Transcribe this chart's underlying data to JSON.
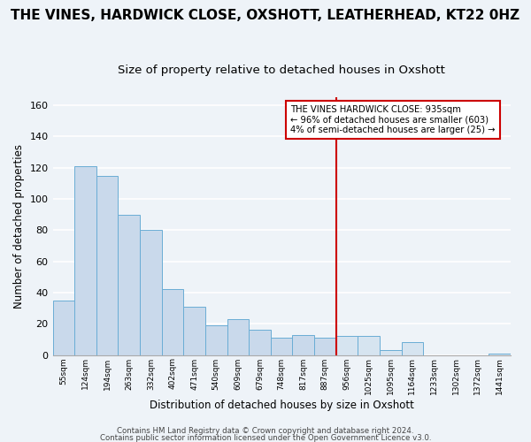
{
  "title": "THE VINES, HARDWICK CLOSE, OXSHOTT, LEATHERHEAD, KT22 0HZ",
  "subtitle": "Size of property relative to detached houses in Oxshott",
  "xlabel": "Distribution of detached houses by size in Oxshott",
  "ylabel": "Number of detached properties",
  "bin_labels": [
    "55sqm",
    "124sqm",
    "194sqm",
    "263sqm",
    "332sqm",
    "402sqm",
    "471sqm",
    "540sqm",
    "609sqm",
    "679sqm",
    "748sqm",
    "817sqm",
    "887sqm",
    "956sqm",
    "1025sqm",
    "1095sqm",
    "1164sqm",
    "1233sqm",
    "1302sqm",
    "1372sqm",
    "1441sqm"
  ],
  "bar_heights": [
    35,
    121,
    115,
    90,
    80,
    42,
    31,
    19,
    23,
    16,
    11,
    13,
    11,
    12,
    12,
    3,
    8,
    0,
    0,
    0,
    1
  ],
  "bar_color_left": "#c9d9eb",
  "bar_color_right": "#d6e4f0",
  "bar_edge_color": "#6aadd5",
  "vline_index": 13,
  "vline_color": "#cc0000",
  "ylim": [
    0,
    165
  ],
  "yticks": [
    0,
    20,
    40,
    60,
    80,
    100,
    120,
    140,
    160
  ],
  "annotation_title": "THE VINES HARDWICK CLOSE: 935sqm",
  "annotation_line1": "← 96% of detached houses are smaller (603)",
  "annotation_line2": "4% of semi-detached houses are larger (25) →",
  "footer1": "Contains HM Land Registry data © Crown copyright and database right 2024.",
  "footer2": "Contains public sector information licensed under the Open Government Licence v3.0.",
  "bg_color": "#eef3f8",
  "plot_bg_color": "#eef3f8",
  "title_fontsize": 11,
  "subtitle_fontsize": 9.5,
  "grid_color": "#ffffff",
  "spine_color": "#aaaaaa"
}
